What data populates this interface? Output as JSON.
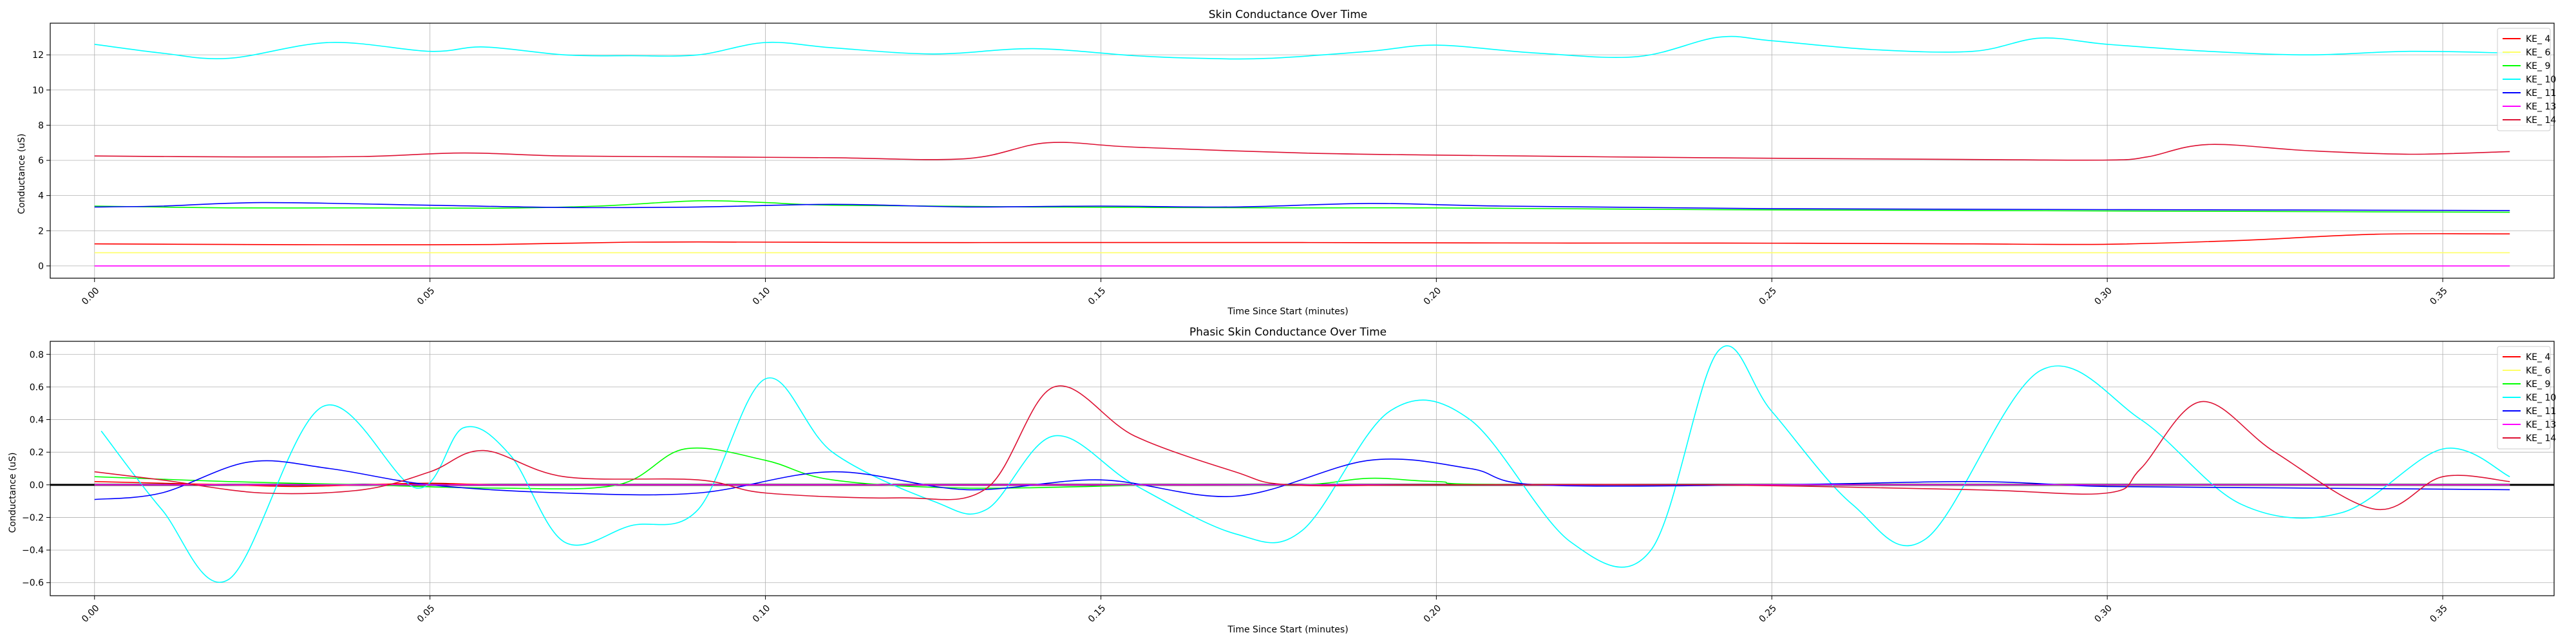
{
  "chart_data": [
    {
      "type": "line",
      "title": "Skin Conductance Over Time",
      "xlabel": "Time Since Start (minutes)",
      "ylabel": "Conductance (uS)",
      "xlim": [
        -0.0066,
        0.3666
      ],
      "ylim": [
        -0.7,
        13.8
      ],
      "xticks": [
        "0.00",
        "0.05",
        "0.10",
        "0.15",
        "0.20",
        "0.25",
        "0.30",
        "0.35"
      ],
      "xtick_values": [
        0,
        0.05,
        0.1,
        0.15,
        0.2,
        0.25,
        0.3,
        0.35
      ],
      "yticks": [
        "0",
        "2",
        "4",
        "6",
        "8",
        "10",
        "12"
      ],
      "ytick_values": [
        0,
        2,
        4,
        6,
        8,
        10,
        12
      ],
      "grid": true,
      "legend_position": "top-right",
      "series": [
        {
          "name": "KE_ 4",
          "color": "#ff0000",
          "x": [
            0.0,
            0.02,
            0.04,
            0.06,
            0.08,
            0.1,
            0.12,
            0.14,
            0.16,
            0.18,
            0.2,
            0.22,
            0.24,
            0.26,
            0.28,
            0.3,
            0.32,
            0.34,
            0.36
          ],
          "values": [
            1.25,
            1.22,
            1.2,
            1.22,
            1.35,
            1.35,
            1.33,
            1.33,
            1.33,
            1.33,
            1.31,
            1.3,
            1.3,
            1.28,
            1.25,
            1.23,
            1.45,
            1.8,
            1.82
          ]
        },
        {
          "name": "KE_ 6",
          "color": "#ffff66",
          "x": [
            0.0,
            0.36
          ],
          "values": [
            0.75,
            0.75
          ]
        },
        {
          "name": "KE_ 9",
          "color": "#00ff00",
          "x": [
            0.0,
            0.02,
            0.04,
            0.06,
            0.075,
            0.09,
            0.1,
            0.11,
            0.14,
            0.18,
            0.2,
            0.24,
            0.28,
            0.32,
            0.36
          ],
          "values": [
            3.4,
            3.3,
            3.3,
            3.28,
            3.4,
            3.7,
            3.6,
            3.45,
            3.35,
            3.3,
            3.3,
            3.2,
            3.15,
            3.1,
            3.05
          ]
        },
        {
          "name": "KE_ 10",
          "color": "#00ffff",
          "x": [
            0.0,
            0.01,
            0.02,
            0.035,
            0.05,
            0.058,
            0.07,
            0.08,
            0.09,
            0.1,
            0.11,
            0.125,
            0.14,
            0.155,
            0.165,
            0.175,
            0.19,
            0.2,
            0.215,
            0.23,
            0.242,
            0.25,
            0.265,
            0.28,
            0.29,
            0.3,
            0.315,
            0.33,
            0.345,
            0.36
          ],
          "values": [
            12.6,
            12.1,
            11.8,
            12.7,
            12.2,
            12.45,
            12.0,
            11.95,
            12.0,
            12.7,
            12.4,
            12.05,
            12.35,
            11.95,
            11.8,
            11.8,
            12.2,
            12.55,
            12.1,
            11.9,
            13.0,
            12.8,
            12.3,
            12.2,
            12.95,
            12.6,
            12.2,
            12.0,
            12.2,
            12.1
          ]
        },
        {
          "name": "KE_ 11",
          "color": "#0000ff",
          "x": [
            0.0,
            0.01,
            0.025,
            0.05,
            0.07,
            0.09,
            0.11,
            0.13,
            0.15,
            0.17,
            0.19,
            0.21,
            0.25,
            0.3,
            0.36
          ],
          "values": [
            3.35,
            3.4,
            3.6,
            3.45,
            3.32,
            3.35,
            3.5,
            3.35,
            3.4,
            3.35,
            3.55,
            3.4,
            3.25,
            3.2,
            3.15
          ]
        },
        {
          "name": "KE_ 13",
          "color": "#ff00ff",
          "x": [
            0.0,
            0.36
          ],
          "values": [
            0.0,
            0.0
          ]
        },
        {
          "name": "KE_ 14",
          "color": "#dd1133",
          "x": [
            0.0,
            0.02,
            0.04,
            0.055,
            0.07,
            0.09,
            0.11,
            0.13,
            0.142,
            0.155,
            0.18,
            0.2,
            0.24,
            0.28,
            0.3,
            0.306,
            0.315,
            0.33,
            0.345,
            0.36
          ],
          "values": [
            6.25,
            6.2,
            6.22,
            6.42,
            6.25,
            6.2,
            6.15,
            6.1,
            7.0,
            6.75,
            6.42,
            6.3,
            6.15,
            6.05,
            6.02,
            6.2,
            6.9,
            6.55,
            6.35,
            6.5
          ]
        }
      ]
    },
    {
      "type": "line",
      "title": "Phasic Skin Conductance Over Time",
      "xlabel": "Time Since Start (minutes)",
      "ylabel": "Conductance (uS)",
      "xlim": [
        -0.0066,
        0.3666
      ],
      "ylim": [
        -0.68,
        0.88
      ],
      "xticks": [
        "0.00",
        "0.05",
        "0.10",
        "0.15",
        "0.20",
        "0.25",
        "0.30",
        "0.35"
      ],
      "xtick_values": [
        0,
        0.05,
        0.1,
        0.15,
        0.2,
        0.25,
        0.3,
        0.35
      ],
      "yticks": [
        "−0.6",
        "−0.4",
        "−0.2",
        "0.0",
        "0.2",
        "0.4",
        "0.6",
        "0.8"
      ],
      "ytick_values": [
        -0.6,
        -0.4,
        -0.2,
        0.0,
        0.2,
        0.4,
        0.6,
        0.8
      ],
      "zero_line": true,
      "grid": true,
      "legend_position": "top-right",
      "series": [
        {
          "name": "KE_ 4",
          "color": "#ff0000",
          "x": [
            0.0,
            0.01,
            0.02,
            0.03,
            0.04,
            0.05,
            0.06,
            0.08,
            0.1,
            0.12,
            0.14,
            0.16,
            0.18,
            0.2,
            0.24,
            0.28,
            0.3,
            0.32,
            0.34,
            0.36
          ],
          "values": [
            0.02,
            0.01,
            0.0,
            -0.01,
            0.0,
            0.01,
            0.0,
            0.0,
            0.0,
            0.0,
            0.0,
            0.0,
            0.0,
            0.0,
            0.0,
            0.0,
            0.0,
            0.0,
            0.0,
            0.0
          ]
        },
        {
          "name": "KE_ 6",
          "color": "#ffff66",
          "x": [
            0.0,
            0.36
          ],
          "values": [
            0.0,
            0.0
          ]
        },
        {
          "name": "KE_ 9",
          "color": "#00ff00",
          "x": [
            0.0,
            0.02,
            0.04,
            0.06,
            0.078,
            0.088,
            0.1,
            0.11,
            0.13,
            0.16,
            0.18,
            0.19,
            0.2,
            0.22,
            0.36
          ],
          "values": [
            0.05,
            0.02,
            0.0,
            -0.02,
            0.0,
            0.22,
            0.15,
            0.03,
            -0.02,
            0.0,
            0.0,
            0.04,
            0.02,
            0.0,
            0.0
          ]
        },
        {
          "name": "KE_ 10",
          "color": "#00ffff",
          "x": [
            0.001,
            0.01,
            0.02,
            0.034,
            0.048,
            0.055,
            0.062,
            0.07,
            0.08,
            0.09,
            0.1,
            0.11,
            0.125,
            0.133,
            0.143,
            0.155,
            0.17,
            0.18,
            0.193,
            0.205,
            0.22,
            0.232,
            0.242,
            0.25,
            0.262,
            0.273,
            0.29,
            0.305,
            0.32,
            0.335,
            0.35,
            0.36
          ],
          "values": [
            0.33,
            -0.15,
            -0.58,
            0.48,
            -0.02,
            0.35,
            0.18,
            -0.35,
            -0.25,
            -0.15,
            0.65,
            0.2,
            -0.1,
            -0.15,
            0.3,
            0.0,
            -0.3,
            -0.28,
            0.45,
            0.4,
            -0.35,
            -0.4,
            0.82,
            0.45,
            -0.12,
            -0.33,
            0.7,
            0.4,
            -0.12,
            -0.17,
            0.22,
            0.05
          ]
        },
        {
          "name": "KE_ 11",
          "color": "#0000ff",
          "x": [
            0.0,
            0.01,
            0.023,
            0.035,
            0.05,
            0.07,
            0.09,
            0.11,
            0.13,
            0.15,
            0.17,
            0.19,
            0.205,
            0.215,
            0.25,
            0.28,
            0.3,
            0.33,
            0.36
          ],
          "values": [
            -0.09,
            -0.05,
            0.14,
            0.1,
            0.0,
            -0.05,
            -0.05,
            0.08,
            -0.03,
            0.03,
            -0.07,
            0.15,
            0.1,
            0.0,
            0.0,
            0.02,
            -0.01,
            -0.02,
            -0.03
          ]
        },
        {
          "name": "KE_ 13",
          "color": "#ff00ff",
          "x": [
            0.0,
            0.36
          ],
          "values": [
            0.0,
            0.0
          ]
        },
        {
          "name": "KE_ 14",
          "color": "#dd1133",
          "x": [
            0.0,
            0.01,
            0.025,
            0.04,
            0.05,
            0.058,
            0.07,
            0.09,
            0.1,
            0.12,
            0.133,
            0.143,
            0.155,
            0.17,
            0.178,
            0.2,
            0.24,
            0.28,
            0.3,
            0.305,
            0.314,
            0.325,
            0.34,
            0.35,
            0.36
          ],
          "values": [
            0.08,
            0.03,
            -0.05,
            -0.03,
            0.08,
            0.21,
            0.05,
            0.03,
            -0.05,
            -0.08,
            -0.02,
            0.6,
            0.3,
            0.08,
            0.0,
            0.0,
            0.0,
            -0.03,
            -0.05,
            0.1,
            0.51,
            0.2,
            -0.15,
            0.05,
            0.02
          ]
        }
      ]
    }
  ]
}
